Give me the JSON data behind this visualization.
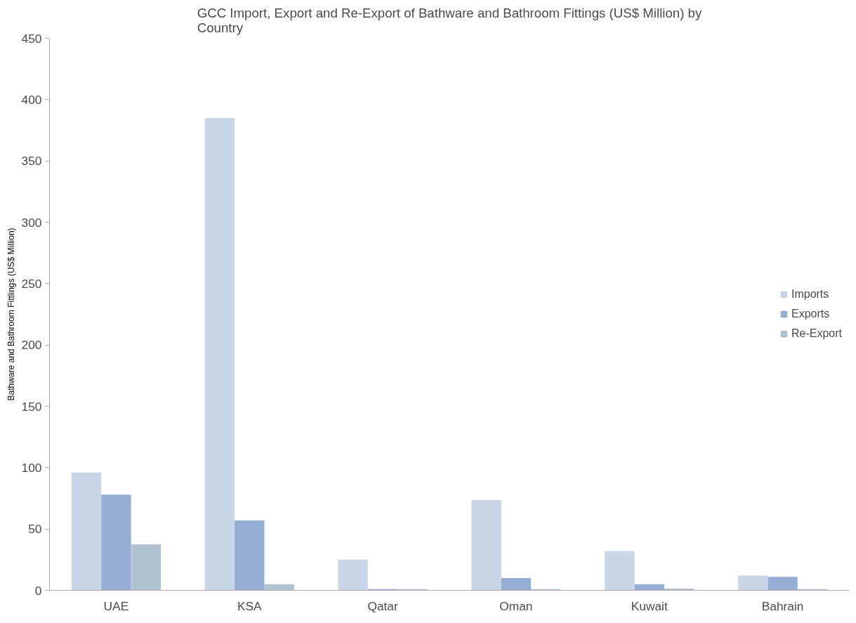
{
  "chart_data": {
    "type": "bar",
    "title": "GCC Import, Export and Re-Export of Bathware and Bathroom Fittings (US$ Million) by Country",
    "ylabel": "Bathware and Bathroom Fittlings (US$ Million)",
    "categories": [
      "UAE",
      "KSA",
      "Qatar",
      "Oman",
      "Kuwait",
      "Bahrain"
    ],
    "series": [
      {
        "name": "Imports",
        "color": "#c9d6e8",
        "values": [
          96,
          385,
          25,
          73.5,
          32,
          12
        ]
      },
      {
        "name": "Exports",
        "color": "#95aed3",
        "values": [
          78,
          57,
          1,
          10,
          5,
          11
        ]
      },
      {
        "name": "Re-Export",
        "color": "#b0c2d1",
        "values": [
          37.5,
          5,
          1,
          1,
          1.5,
          1
        ]
      }
    ],
    "ylim": [
      0,
      450
    ],
    "yticks": [
      0,
      50,
      100,
      150,
      200,
      250,
      300,
      350,
      400,
      450
    ],
    "grid": false,
    "legend": "right"
  }
}
